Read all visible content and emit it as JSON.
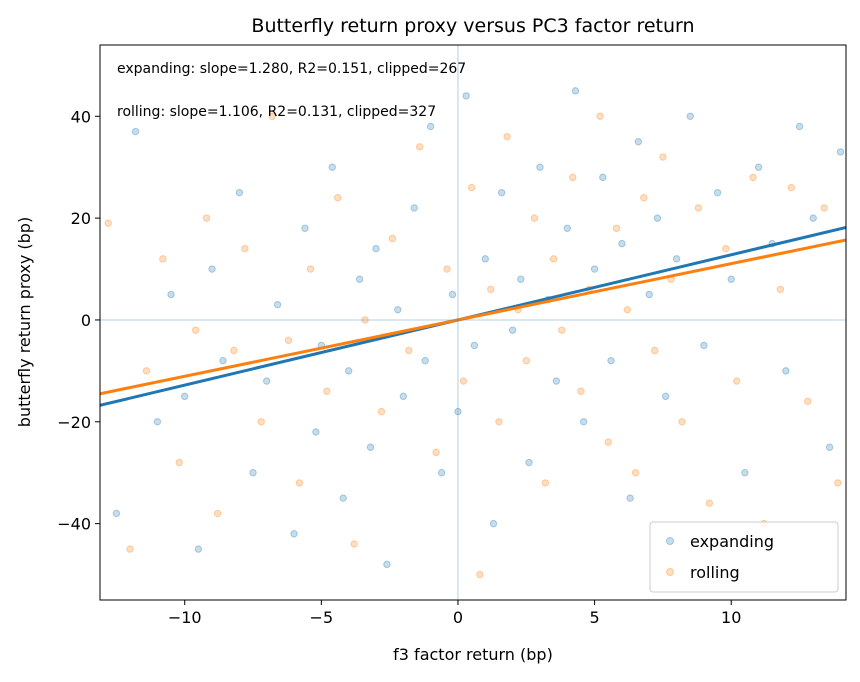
{
  "chart_data": {
    "type": "scatter",
    "title": "Butterfly return proxy versus PC3 factor return",
    "xlabel": "f3 factor return (bp)",
    "ylabel": "butterfly return proxy (bp)",
    "xlim": [
      -13.1,
      14.2
    ],
    "ylim": [
      -55,
      54
    ],
    "xticks": [
      -10,
      -5,
      0,
      5,
      10
    ],
    "xtick_labels": [
      "−10",
      "−5",
      "0",
      "5",
      "10"
    ],
    "yticks": [
      -40,
      -20,
      0,
      20,
      40
    ],
    "ytick_labels": [
      "−40",
      "−20",
      "0",
      "20",
      "40"
    ],
    "grid": false,
    "reference_lines": {
      "x": 0,
      "y": 0
    },
    "legend_position": "lower-right",
    "annotations": [
      "expanding: slope=1.280, R2=0.151, clipped=267",
      "rolling: slope=1.106, R2=0.131, clipped=327"
    ],
    "series": [
      {
        "name": "expanding",
        "color": "#1f77b4",
        "slope": 1.28,
        "intercept": 0,
        "points": [
          [
            -12.5,
            -38
          ],
          [
            -11.8,
            37
          ],
          [
            -11,
            -20
          ],
          [
            -10.5,
            5
          ],
          [
            -10,
            -15
          ],
          [
            -9.5,
            -45
          ],
          [
            -9,
            10
          ],
          [
            -8.6,
            -8
          ],
          [
            -8,
            25
          ],
          [
            -7.5,
            -30
          ],
          [
            -7,
            -12
          ],
          [
            -6.6,
            3
          ],
          [
            -6,
            -42
          ],
          [
            -5.6,
            18
          ],
          [
            -5.2,
            -22
          ],
          [
            -5,
            -5
          ],
          [
            -4.6,
            30
          ],
          [
            -4.2,
            -35
          ],
          [
            -4,
            -10
          ],
          [
            -3.6,
            8
          ],
          [
            -3.2,
            -25
          ],
          [
            -3,
            14
          ],
          [
            -2.6,
            -48
          ],
          [
            -2.2,
            2
          ],
          [
            -2,
            -15
          ],
          [
            -1.6,
            22
          ],
          [
            -1.2,
            -8
          ],
          [
            -1,
            38
          ],
          [
            -0.6,
            -30
          ],
          [
            -0.2,
            5
          ],
          [
            0,
            -18
          ],
          [
            0.3,
            44
          ],
          [
            0.6,
            -5
          ],
          [
            1,
            12
          ],
          [
            1.3,
            -40
          ],
          [
            1.6,
            25
          ],
          [
            2,
            -2
          ],
          [
            2.3,
            8
          ],
          [
            2.6,
            -28
          ],
          [
            3,
            30
          ],
          [
            3.3,
            4
          ],
          [
            3.6,
            -12
          ],
          [
            4,
            18
          ],
          [
            4.3,
            45
          ],
          [
            4.6,
            -20
          ],
          [
            5,
            10
          ],
          [
            5.3,
            28
          ],
          [
            5.6,
            -8
          ],
          [
            6,
            15
          ],
          [
            6.3,
            -35
          ],
          [
            6.6,
            35
          ],
          [
            7,
            5
          ],
          [
            7.3,
            20
          ],
          [
            7.6,
            -15
          ],
          [
            8,
            12
          ],
          [
            8.5,
            40
          ],
          [
            9,
            -5
          ],
          [
            9.5,
            25
          ],
          [
            10,
            8
          ],
          [
            10.5,
            -30
          ],
          [
            11,
            30
          ],
          [
            11.5,
            15
          ],
          [
            12,
            -10
          ],
          [
            12.5,
            38
          ],
          [
            13,
            20
          ],
          [
            13.6,
            -25
          ],
          [
            14,
            33
          ]
        ]
      },
      {
        "name": "rolling",
        "color": "#ff7f0e",
        "slope": 1.106,
        "intercept": 0,
        "points": [
          [
            -12.8,
            19
          ],
          [
            -12,
            -45
          ],
          [
            -11.4,
            -10
          ],
          [
            -10.8,
            12
          ],
          [
            -10.2,
            -28
          ],
          [
            -9.6,
            -2
          ],
          [
            -9.2,
            20
          ],
          [
            -8.8,
            -38
          ],
          [
            -8.2,
            -6
          ],
          [
            -7.8,
            14
          ],
          [
            -7.2,
            -20
          ],
          [
            -6.8,
            40
          ],
          [
            -6.2,
            -4
          ],
          [
            -5.8,
            -32
          ],
          [
            -5.4,
            10
          ],
          [
            -4.8,
            -14
          ],
          [
            -4.4,
            24
          ],
          [
            -3.8,
            -44
          ],
          [
            -3.4,
            0
          ],
          [
            -2.8,
            -18
          ],
          [
            -2.4,
            16
          ],
          [
            -1.8,
            -6
          ],
          [
            -1.4,
            34
          ],
          [
            -0.8,
            -26
          ],
          [
            -0.4,
            10
          ],
          [
            0.2,
            -12
          ],
          [
            0.5,
            26
          ],
          [
            0.8,
            -50
          ],
          [
            1.2,
            6
          ],
          [
            1.5,
            -20
          ],
          [
            1.8,
            36
          ],
          [
            2.2,
            2
          ],
          [
            2.5,
            -8
          ],
          [
            2.8,
            20
          ],
          [
            3.2,
            -32
          ],
          [
            3.5,
            12
          ],
          [
            3.8,
            -2
          ],
          [
            4.2,
            28
          ],
          [
            4.5,
            -14
          ],
          [
            4.8,
            6
          ],
          [
            5.2,
            40
          ],
          [
            5.5,
            -24
          ],
          [
            5.8,
            18
          ],
          [
            6.2,
            2
          ],
          [
            6.5,
            -30
          ],
          [
            6.8,
            24
          ],
          [
            7.2,
            -6
          ],
          [
            7.5,
            32
          ],
          [
            7.8,
            8
          ],
          [
            8.2,
            -20
          ],
          [
            8.8,
            22
          ],
          [
            9.2,
            -36
          ],
          [
            9.8,
            14
          ],
          [
            10.2,
            -12
          ],
          [
            10.8,
            28
          ],
          [
            11.2,
            -40
          ],
          [
            11.8,
            6
          ],
          [
            12.2,
            26
          ],
          [
            12.8,
            -16
          ],
          [
            13.4,
            22
          ],
          [
            13.9,
            -32
          ]
        ]
      }
    ]
  }
}
